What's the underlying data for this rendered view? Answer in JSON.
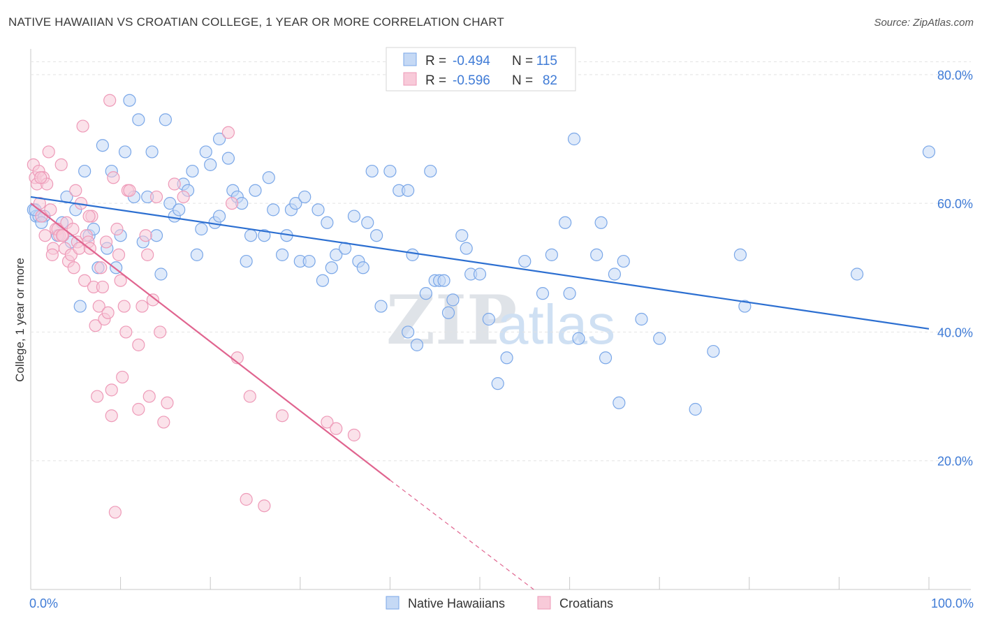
{
  "header": {
    "title": "NATIVE HAWAIIAN VS CROATIAN COLLEGE, 1 YEAR OR MORE CORRELATION CHART",
    "source": "Source: ZipAtlas.com"
  },
  "watermark": {
    "zip": "ZIP",
    "atlas": "atlas"
  },
  "legend_box": {
    "rows": [
      {
        "r_label": "R =",
        "r_value": "-0.494",
        "n_label": "N =",
        "n_value": "115",
        "color": "#7aa7e8",
        "fill": "#c5d9f5"
      },
      {
        "r_label": "R =",
        "r_value": "-0.596",
        "n_label": "N =",
        "n_value": "82",
        "color": "#ee9ab8",
        "fill": "#f8cad9"
      }
    ]
  },
  "bottom_legend": [
    {
      "label": "Native Hawaiians",
      "color": "#7aa7e8",
      "fill": "#c5d9f5"
    },
    {
      "label": "Croatians",
      "color": "#ee9ab8",
      "fill": "#f8cad9"
    }
  ],
  "chart_data": {
    "type": "scatter",
    "title": "NATIVE HAWAIIAN VS CROATIAN COLLEGE, 1 YEAR OR MORE CORRELATION CHART",
    "xlabel": "",
    "ylabel": "College, 1 year or more",
    "xlim": [
      0,
      100
    ],
    "ylim": [
      0,
      84
    ],
    "x_tick_labels": [
      "0.0%",
      "100.0%"
    ],
    "y_ticks": [
      20,
      40,
      60,
      80
    ],
    "y_tick_labels": [
      "20.0%",
      "40.0%",
      "60.0%",
      "80.0%"
    ],
    "grid": true,
    "series": [
      {
        "name": "Native Hawaiians",
        "color": "#7aa7e8",
        "fill": "#c5d9f5",
        "line_color": "#2c6fd1",
        "trend": {
          "x0": 0,
          "y0": 61.0,
          "x1": 100,
          "y1": 40.5
        },
        "points": [
          [
            0.3,
            59
          ],
          [
            0.6,
            58
          ],
          [
            0.9,
            58
          ],
          [
            1.5,
            58
          ],
          [
            3,
            55
          ],
          [
            3.5,
            57
          ],
          [
            4,
            61
          ],
          [
            4.5,
            54
          ],
          [
            5,
            59
          ],
          [
            5.5,
            44
          ],
          [
            6,
            65
          ],
          [
            6.5,
            55
          ],
          [
            7,
            56
          ],
          [
            7.5,
            50
          ],
          [
            8,
            69
          ],
          [
            8.5,
            53
          ],
          [
            9,
            65
          ],
          [
            9.5,
            50
          ],
          [
            10,
            55
          ],
          [
            10.5,
            68
          ],
          [
            11,
            76
          ],
          [
            11.5,
            61
          ],
          [
            12,
            73
          ],
          [
            12.5,
            54
          ],
          [
            13,
            61
          ],
          [
            13.5,
            68
          ],
          [
            14,
            55
          ],
          [
            14.5,
            49
          ],
          [
            15,
            73
          ],
          [
            15.5,
            60
          ],
          [
            16,
            58
          ],
          [
            16.5,
            59
          ],
          [
            17,
            63
          ],
          [
            17.5,
            62
          ],
          [
            18,
            65
          ],
          [
            18.5,
            52
          ],
          [
            19,
            56
          ],
          [
            19.5,
            68
          ],
          [
            20,
            66
          ],
          [
            20.5,
            57
          ],
          [
            21,
            58
          ],
          [
            22,
            67
          ],
          [
            22.5,
            62
          ],
          [
            23,
            61
          ],
          [
            23.5,
            60
          ],
          [
            24,
            51
          ],
          [
            24.5,
            55
          ],
          [
            25,
            62
          ],
          [
            26,
            55
          ],
          [
            26.5,
            64
          ],
          [
            27,
            59
          ],
          [
            28,
            52
          ],
          [
            28.5,
            55
          ],
          [
            29,
            59
          ],
          [
            29.5,
            60
          ],
          [
            30,
            51
          ],
          [
            30.5,
            61
          ],
          [
            31,
            51
          ],
          [
            32,
            59
          ],
          [
            32.5,
            48
          ],
          [
            33,
            57
          ],
          [
            33.5,
            50
          ],
          [
            34,
            52
          ],
          [
            35,
            53
          ],
          [
            36,
            58
          ],
          [
            36.5,
            51
          ],
          [
            37,
            50
          ],
          [
            37.5,
            57
          ],
          [
            38,
            65
          ],
          [
            38.5,
            55
          ],
          [
            39,
            44
          ],
          [
            40,
            65
          ],
          [
            41,
            62
          ],
          [
            42,
            62
          ],
          [
            42.5,
            52
          ],
          [
            43,
            38
          ],
          [
            44,
            46
          ],
          [
            44.5,
            65
          ],
          [
            45,
            48
          ],
          [
            45.5,
            48
          ],
          [
            46,
            48
          ],
          [
            46.5,
            43
          ],
          [
            47,
            45
          ],
          [
            48,
            55
          ],
          [
            48.5,
            53
          ],
          [
            49,
            49
          ],
          [
            50,
            49
          ],
          [
            51,
            42
          ],
          [
            52,
            32
          ],
          [
            53,
            36
          ],
          [
            55,
            51
          ],
          [
            57,
            46
          ],
          [
            58,
            52
          ],
          [
            59.5,
            57
          ],
          [
            60,
            46
          ],
          [
            60.5,
            70
          ],
          [
            61,
            39
          ],
          [
            63,
            52
          ],
          [
            63.5,
            57
          ],
          [
            64,
            36
          ],
          [
            65,
            49
          ],
          [
            65.5,
            29
          ],
          [
            66,
            51
          ],
          [
            68,
            42
          ],
          [
            70,
            39
          ],
          [
            74,
            28
          ],
          [
            76,
            37
          ],
          [
            79,
            52
          ],
          [
            79.5,
            44
          ],
          [
            92,
            49
          ],
          [
            100,
            68
          ],
          [
            0.5,
            59
          ],
          [
            1.2,
            57
          ],
          [
            42,
            40
          ],
          [
            21,
            70
          ]
        ]
      },
      {
        "name": "Croatians",
        "color": "#ee9ab8",
        "fill": "#f8cad9",
        "line_color": "#e0648f",
        "trend": {
          "x0": 0,
          "y0": 60.0,
          "x1": 40,
          "y1": 17.0
        },
        "trend_dashed": {
          "x0": 40,
          "y0": 17.0,
          "x1": 56,
          "y1": 0.0
        },
        "points": [
          [
            0.3,
            66
          ],
          [
            0.5,
            64
          ],
          [
            0.7,
            63
          ],
          [
            0.9,
            65
          ],
          [
            1.0,
            60
          ],
          [
            1.2,
            58
          ],
          [
            1.4,
            64
          ],
          [
            1.6,
            55
          ],
          [
            1.8,
            63
          ],
          [
            2,
            68
          ],
          [
            2.2,
            59
          ],
          [
            2.5,
            53
          ],
          [
            2.8,
            56
          ],
          [
            3,
            56
          ],
          [
            3.2,
            55
          ],
          [
            3.4,
            66
          ],
          [
            3.6,
            55
          ],
          [
            3.8,
            53
          ],
          [
            4,
            57
          ],
          [
            4.2,
            51
          ],
          [
            4.5,
            52
          ],
          [
            4.8,
            50
          ],
          [
            5,
            62
          ],
          [
            5.2,
            54
          ],
          [
            5.4,
            53
          ],
          [
            5.6,
            60
          ],
          [
            5.8,
            72
          ],
          [
            6,
            48
          ],
          [
            6.2,
            55
          ],
          [
            6.4,
            54
          ],
          [
            6.6,
            53
          ],
          [
            6.8,
            58
          ],
          [
            7,
            47
          ],
          [
            7.2,
            41
          ],
          [
            7.4,
            30
          ],
          [
            7.6,
            44
          ],
          [
            7.8,
            50
          ],
          [
            8,
            47
          ],
          [
            8.2,
            42
          ],
          [
            8.4,
            54
          ],
          [
            8.6,
            43
          ],
          [
            8.8,
            76
          ],
          [
            9,
            31
          ],
          [
            9,
            27
          ],
          [
            9.2,
            64
          ],
          [
            9.4,
            12
          ],
          [
            9.6,
            56
          ],
          [
            9.8,
            52
          ],
          [
            10,
            48
          ],
          [
            10.2,
            33
          ],
          [
            10.4,
            44
          ],
          [
            10.6,
            40
          ],
          [
            10.8,
            62
          ],
          [
            11,
            62
          ],
          [
            12,
            28
          ],
          [
            12,
            38
          ],
          [
            12.4,
            44
          ],
          [
            12.8,
            55
          ],
          [
            13,
            52
          ],
          [
            13.2,
            30
          ],
          [
            13.6,
            45
          ],
          [
            14,
            61
          ],
          [
            14.4,
            40
          ],
          [
            14.8,
            26
          ],
          [
            15.2,
            29
          ],
          [
            16,
            63
          ],
          [
            17,
            61
          ],
          [
            22,
            71
          ],
          [
            22.4,
            60
          ],
          [
            23,
            36
          ],
          [
            24,
            14
          ],
          [
            24.4,
            30
          ],
          [
            26,
            13
          ],
          [
            28,
            27
          ],
          [
            33,
            26
          ],
          [
            34,
            25
          ],
          [
            36,
            24
          ],
          [
            1.1,
            64
          ],
          [
            2.4,
            52
          ],
          [
            3.5,
            55
          ],
          [
            4.7,
            56
          ],
          [
            6.5,
            58
          ]
        ]
      }
    ]
  }
}
